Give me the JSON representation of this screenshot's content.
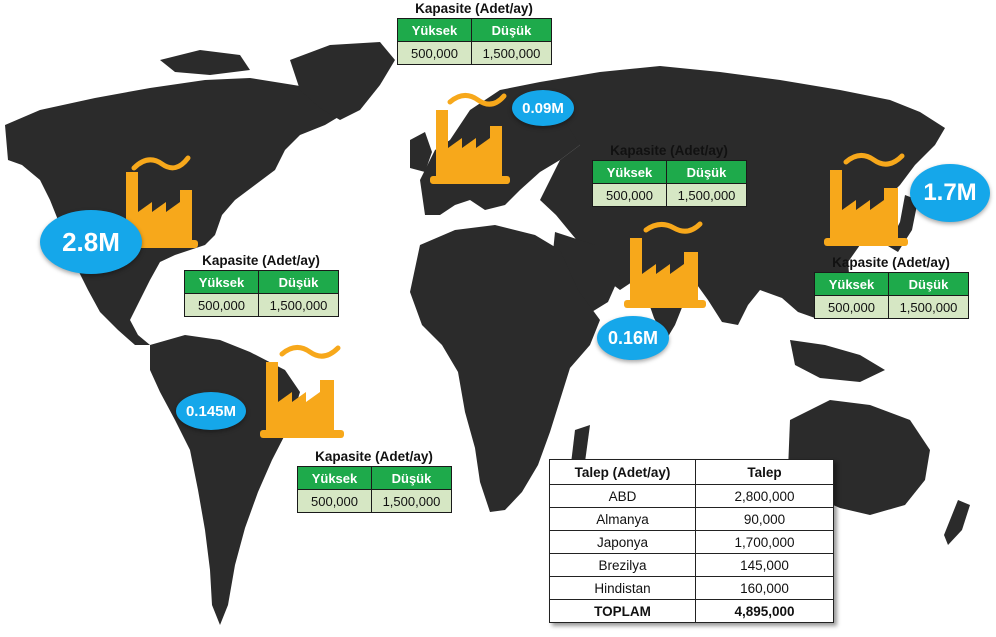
{
  "capacity_label": "Kapasite (Adet/ay)",
  "capacity_columns": [
    "Yüksek",
    "Düşük"
  ],
  "factories": [
    {
      "id": "abd",
      "bubble": "2.8M",
      "high": "500,000",
      "low": "1,500,000"
    },
    {
      "id": "almanya",
      "bubble": "0.09M",
      "high": "500,000",
      "low": "1,500,000"
    },
    {
      "id": "japonya",
      "bubble": "1.7M",
      "high": "500,000",
      "low": "1,500,000"
    },
    {
      "id": "brezilya",
      "bubble": "0.145M",
      "high": "500,000",
      "low": "1,500,000"
    },
    {
      "id": "hindistan",
      "bubble": "0.16M",
      "high": "500,000",
      "low": "1,500,000"
    }
  ],
  "demand_table": {
    "headers": [
      "Talep (Adet/ay)",
      "Talep"
    ],
    "rows": [
      {
        "country": "ABD",
        "value": "2,800,000"
      },
      {
        "country": "Almanya",
        "value": "90,000"
      },
      {
        "country": "Japonya",
        "value": "1,700,000"
      },
      {
        "country": "Brezilya",
        "value": "145,000"
      },
      {
        "country": "Hindistan",
        "value": "160,000"
      }
    ],
    "total": {
      "label": "TOPLAM",
      "value": "4,895,000"
    }
  },
  "colors": {
    "land": "#2b2b2b",
    "bubble": "#15a7ea",
    "factory": "#f7a81b",
    "table_header": "#1eaa4b",
    "table_cell": "#d6e7c4"
  }
}
